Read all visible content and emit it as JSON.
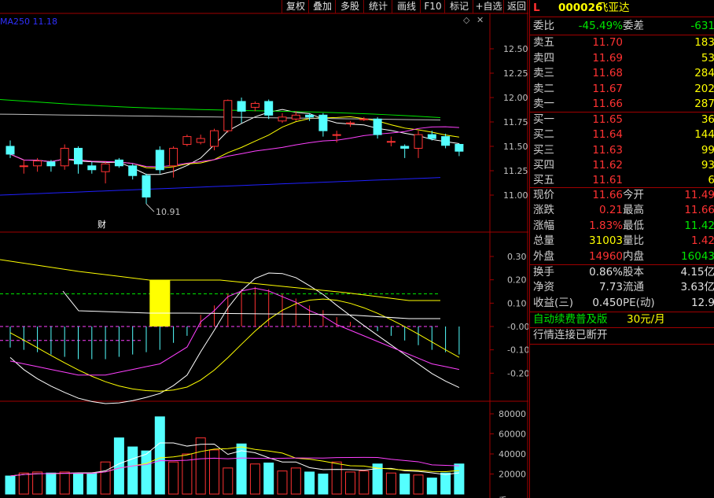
{
  "toolbar": [
    "复权",
    "叠加",
    "多股",
    "统计",
    "画线",
    "F10",
    "标记",
    "+自选",
    "返回"
  ],
  "ma_label": "MA250  11.18",
  "price_axis": [
    "12.50",
    "12.25",
    "12.00",
    "11.75",
    "11.50",
    "11.25",
    "11.00"
  ],
  "low_marker": "10.91",
  "cai_marker": "财",
  "macd_axis": [
    "0.30",
    "0.20",
    "0.10",
    "-0.00",
    "-0.10",
    "-0.20"
  ],
  "vol_axis": [
    "80000",
    "60000",
    "40000",
    "20000"
  ],
  "vol_axis_bottom": "手",
  "colors": {
    "up": "#ff3232",
    "down": "#54ffff",
    "accent": "#ffff00",
    "green": "#00e600",
    "white": "#ffffff",
    "grid": "#a00000"
  },
  "stock": {
    "tag": "L",
    "code": "000026",
    "name": "飞亚达"
  },
  "weibi": {
    "label": "委比",
    "value": "-45.49%",
    "label2": "委差",
    "value2": "-631"
  },
  "sell": [
    {
      "label": "卖五",
      "price": "11.70",
      "vol": "183"
    },
    {
      "label": "卖四",
      "price": "11.69",
      "vol": "53"
    },
    {
      "label": "卖三",
      "price": "11.68",
      "vol": "284"
    },
    {
      "label": "卖二",
      "price": "11.67",
      "vol": "202"
    },
    {
      "label": "卖一",
      "price": "11.66",
      "vol": "287"
    }
  ],
  "buy": [
    {
      "label": "买一",
      "price": "11.65",
      "vol": "36"
    },
    {
      "label": "买二",
      "price": "11.64",
      "vol": "144"
    },
    {
      "label": "买三",
      "price": "11.63",
      "vol": "99"
    },
    {
      "label": "买四",
      "price": "11.62",
      "vol": "93"
    },
    {
      "label": "买五",
      "price": "11.61",
      "vol": "6"
    }
  ],
  "stats": [
    {
      "l1": "现价",
      "v1": "11.66",
      "l2": "今开",
      "v2": "11.49"
    },
    {
      "l1": "涨跌",
      "v1": "0.21",
      "l2": "最高",
      "v2": "11.66"
    },
    {
      "l1": "涨幅",
      "v1": "1.83%",
      "l2": "最低",
      "v2": "11.42"
    },
    {
      "l1": "总量",
      "v1": "31003",
      "l2": "量比",
      "v2": "1.42"
    },
    {
      "l1": "外盘",
      "v1": "14960",
      "l2": "内盘",
      "v2": "16043"
    }
  ],
  "stats2": [
    {
      "l1": "换手",
      "v1": "0.86%",
      "l2": "股本",
      "v2": "4.15亿"
    },
    {
      "l1": "净资",
      "v1": "7.73",
      "l2": "流通",
      "v2": "3.63亿"
    },
    {
      "l1": "收益(三)",
      "v1": "0.450",
      "l2": "PE(动)",
      "v2": "12.9"
    }
  ],
  "promo": {
    "text": "自动续费普及版",
    "price": "30元/月"
  },
  "status": "行情连接已断开",
  "candles": [
    {
      "o": 11.5,
      "c": 11.42,
      "h": 11.56,
      "l": 11.38
    },
    {
      "o": 11.3,
      "c": 11.3,
      "h": 11.36,
      "l": 11.22
    },
    {
      "o": 11.3,
      "c": 11.35,
      "h": 11.38,
      "l": 11.24
    },
    {
      "o": 11.34,
      "c": 11.3,
      "h": 11.36,
      "l": 11.24
    },
    {
      "o": 11.3,
      "c": 11.48,
      "h": 11.52,
      "l": 11.26
    },
    {
      "o": 11.48,
      "c": 11.32,
      "h": 11.5,
      "l": 11.22
    },
    {
      "o": 11.3,
      "c": 11.26,
      "h": 11.34,
      "l": 11.22
    },
    {
      "o": 11.24,
      "c": 11.32,
      "h": 11.34,
      "l": 11.12
    },
    {
      "o": 11.36,
      "c": 11.3,
      "h": 11.38,
      "l": 11.28
    },
    {
      "o": 11.3,
      "c": 11.2,
      "h": 11.32,
      "l": 11.16
    },
    {
      "o": 11.2,
      "c": 10.98,
      "h": 11.22,
      "l": 10.91
    },
    {
      "o": 11.46,
      "c": 11.26,
      "h": 11.5,
      "l": 11.22
    },
    {
      "o": 11.3,
      "c": 11.48,
      "h": 11.5,
      "l": 11.18
    },
    {
      "o": 11.52,
      "c": 11.6,
      "h": 11.62,
      "l": 11.5
    },
    {
      "o": 11.54,
      "c": 11.58,
      "h": 11.62,
      "l": 11.52
    },
    {
      "o": 11.5,
      "c": 11.66,
      "h": 11.68,
      "l": 11.46
    },
    {
      "o": 11.66,
      "c": 11.97,
      "h": 11.98,
      "l": 11.64
    },
    {
      "o": 11.96,
      "c": 11.86,
      "h": 12.0,
      "l": 11.74
    },
    {
      "o": 11.9,
      "c": 11.94,
      "h": 11.96,
      "l": 11.86
    },
    {
      "o": 11.96,
      "c": 11.82,
      "h": 11.98,
      "l": 11.78
    },
    {
      "o": 11.76,
      "c": 11.8,
      "h": 11.84,
      "l": 11.74
    },
    {
      "o": 11.78,
      "c": 11.82,
      "h": 11.86,
      "l": 11.76
    },
    {
      "o": 11.82,
      "c": 11.8,
      "h": 11.84,
      "l": 11.76
    },
    {
      "o": 11.82,
      "c": 11.66,
      "h": 11.84,
      "l": 11.6
    },
    {
      "o": 11.62,
      "c": 11.62,
      "h": 11.66,
      "l": 11.54
    },
    {
      "o": 11.74,
      "c": 11.74,
      "h": 11.76,
      "l": 11.7
    },
    {
      "o": 11.78,
      "c": 11.78,
      "h": 11.8,
      "l": 11.76
    },
    {
      "o": 11.78,
      "c": 11.62,
      "h": 11.8,
      "l": 11.58
    },
    {
      "o": 11.55,
      "c": 11.55,
      "h": 11.6,
      "l": 11.5
    },
    {
      "o": 11.5,
      "c": 11.48,
      "h": 11.52,
      "l": 11.38
    },
    {
      "o": 11.48,
      "c": 11.62,
      "h": 11.66,
      "l": 11.38
    },
    {
      "o": 11.62,
      "c": 11.58,
      "h": 11.66,
      "l": 11.56
    },
    {
      "o": 11.6,
      "c": 11.51,
      "h": 11.63,
      "l": 11.48
    },
    {
      "o": 11.52,
      "c": 11.45,
      "h": 11.53,
      "l": 11.4
    }
  ],
  "macd_hist": [
    -0.09,
    -0.1,
    -0.11,
    -0.12,
    -0.13,
    -0.14,
    -0.14,
    -0.14,
    -0.13,
    -0.12,
    -0.11,
    -0.1,
    -0.07,
    -0.04,
    0.05,
    0.09,
    0.14,
    0.16,
    0.17,
    0.16,
    0.14,
    0.12,
    0.09,
    0.07,
    0.04,
    0.02,
    0.0,
    -0.02,
    -0.04,
    -0.06,
    -0.08,
    -0.1,
    -0.11,
    -0.12
  ],
  "macd_box": {
    "index": 11,
    "from": 0.2,
    "to": 0.0
  },
  "volumes": [
    18000,
    21000,
    22000,
    21000,
    22000,
    20000,
    21000,
    32000,
    56000,
    47000,
    43000,
    77000,
    32000,
    40000,
    56000,
    44000,
    26000,
    50000,
    30000,
    31000,
    23000,
    26000,
    22000,
    20000,
    32000,
    22000,
    23000,
    30000,
    21000,
    20000,
    19000,
    16000,
    21000,
    30000
  ]
}
